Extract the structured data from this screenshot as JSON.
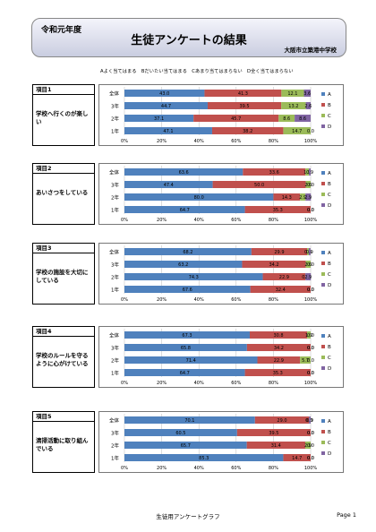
{
  "header": {
    "era": "令和元年度",
    "title": "生徒アンケートの結果",
    "school": "大阪市立築港中学校"
  },
  "legend_line": "Aよく当てはまる　Bだいたい当てはまる　Cあまり当てはまらない　D全く当てはまらない",
  "colors": {
    "A": "#4f81bd",
    "B": "#c0504d",
    "C": "#9bbb59",
    "D": "#8064a2"
  },
  "footer": {
    "center": "生徒用アンケートグラフ",
    "page": "Page 1"
  },
  "chart_data": [
    {
      "type": "bar",
      "item_no": "項目1",
      "question": "学校へ行くのが楽しい",
      "categories": [
        "全体",
        "3年",
        "2年",
        "1年"
      ],
      "series": [
        {
          "name": "A",
          "values": [
            43.0,
            44.7,
            37.1,
            47.1
          ],
          "labels": [
            "43.0",
            "44.7",
            "37.1",
            "47.1"
          ]
        },
        {
          "name": "B",
          "values": [
            41.3,
            39.5,
            45.7,
            38.2
          ],
          "labels": [
            "41.3",
            "39.5",
            "45.7",
            "38.2"
          ]
        },
        {
          "name": "C",
          "values": [
            12.1,
            13.2,
            8.6,
            14.7
          ],
          "labels": [
            "12.1",
            "13.2",
            "8.6",
            "14.7"
          ]
        },
        {
          "name": "D",
          "values": [
            3.6,
            2.6,
            8.6,
            0.0
          ],
          "labels": [
            "3.6",
            "2.6",
            "8.6",
            "0.0"
          ]
        }
      ],
      "xticks": [
        "0%",
        "20%",
        "40%",
        "60%",
        "80%",
        "100%"
      ],
      "xlim": [
        0,
        100
      ]
    },
    {
      "type": "bar",
      "item_no": "項目2",
      "question": "あいさつをしている",
      "categories": [
        "全体",
        "3年",
        "2年",
        "1年"
      ],
      "series": [
        {
          "name": "A",
          "values": [
            63.6,
            47.4,
            80.0,
            64.7
          ],
          "labels": [
            "63.6",
            "47.4",
            "80.0",
            "64.7"
          ]
        },
        {
          "name": "B",
          "values": [
            33.6,
            50.0,
            14.3,
            35.3
          ],
          "labels": [
            "33.6",
            "50.0",
            "14.3",
            "35.3"
          ]
        },
        {
          "name": "C",
          "values": [
            1.9,
            2.6,
            2.9,
            0.0
          ],
          "labels": [
            "1.9",
            "2.6",
            "2.9",
            "0.0"
          ]
        },
        {
          "name": "D",
          "values": [
            0.9,
            0.0,
            2.9,
            0.0
          ],
          "labels": [
            "0.9",
            "0.0",
            "2.9",
            "0.0"
          ]
        }
      ],
      "xticks": [
        "0%",
        "20%",
        "40%",
        "60%",
        "80%",
        "100%"
      ],
      "xlim": [
        0,
        100
      ]
    },
    {
      "type": "bar",
      "item_no": "項目3",
      "question": "学校の施設を大切にしている",
      "categories": [
        "全体",
        "3年",
        "2年",
        "1年"
      ],
      "series": [
        {
          "name": "A",
          "values": [
            68.2,
            63.2,
            74.3,
            67.6
          ],
          "labels": [
            "68.2",
            "63.2",
            "74.3",
            "67.6"
          ]
        },
        {
          "name": "B",
          "values": [
            29.9,
            34.2,
            22.9,
            32.4
          ],
          "labels": [
            "29.9",
            "34.2",
            "22.9",
            "32.4"
          ]
        },
        {
          "name": "C",
          "values": [
            0.9,
            2.6,
            0.0,
            0.0
          ],
          "labels": [
            "0.9",
            "2.6",
            "0.0",
            "0.0"
          ]
        },
        {
          "name": "D",
          "values": [
            0.9,
            0.0,
            2.9,
            0.0
          ],
          "labels": [
            "0.9",
            "0.0",
            "2.9",
            "0.0"
          ]
        }
      ],
      "xticks": [
        "0%",
        "20%",
        "40%",
        "60%",
        "80%",
        "100%"
      ],
      "xlim": [
        0,
        100
      ]
    },
    {
      "type": "bar",
      "item_no": "項目4",
      "question": "学校のルールを守るように心がけている",
      "categories": [
        "全体",
        "3年",
        "2年",
        "1年"
      ],
      "series": [
        {
          "name": "A",
          "values": [
            67.3,
            65.8,
            71.4,
            64.7
          ],
          "labels": [
            "67.3",
            "65.8",
            "71.4",
            "64.7"
          ]
        },
        {
          "name": "B",
          "values": [
            30.8,
            34.2,
            22.9,
            35.3
          ],
          "labels": [
            "30.8",
            "34.2",
            "22.9",
            "35.3"
          ]
        },
        {
          "name": "C",
          "values": [
            1.9,
            0.0,
            5.7,
            0.0
          ],
          "labels": [
            "1.9",
            "0.0",
            "5.7",
            "0.0"
          ]
        },
        {
          "name": "D",
          "values": [
            0.0,
            0.0,
            0.0,
            0.0
          ],
          "labels": [
            "0.0",
            "0.0",
            "0.0",
            "0.0"
          ]
        }
      ],
      "xticks": [
        "0%",
        "20%",
        "40%",
        "60%",
        "80%",
        "100%"
      ],
      "xlim": [
        0,
        100
      ]
    },
    {
      "type": "bar",
      "item_no": "項目5",
      "question": "清掃活動に取り組んでいる",
      "categories": [
        "全体",
        "3年",
        "2年",
        "1年"
      ],
      "series": [
        {
          "name": "A",
          "values": [
            70.1,
            60.5,
            65.7,
            85.3
          ],
          "labels": [
            "70.1",
            "60.5",
            "65.7",
            "85.3"
          ]
        },
        {
          "name": "B",
          "values": [
            29.0,
            39.5,
            31.4,
            14.7
          ],
          "labels": [
            "29.0",
            "39.5",
            "31.4",
            "14.7"
          ]
        },
        {
          "name": "C",
          "values": [
            0.0,
            0.0,
            2.9,
            0.0
          ],
          "labels": [
            "0.0",
            "0.0",
            "2.9",
            "0.0"
          ]
        },
        {
          "name": "D",
          "values": [
            0.9,
            0.0,
            0.0,
            0.0
          ],
          "labels": [
            "0.9",
            "0.0",
            "0.0",
            "0.0"
          ]
        }
      ],
      "xticks": [
        "0%",
        "20%",
        "40%",
        "60%",
        "80%",
        "100%"
      ],
      "xlim": [
        0,
        100
      ]
    }
  ]
}
